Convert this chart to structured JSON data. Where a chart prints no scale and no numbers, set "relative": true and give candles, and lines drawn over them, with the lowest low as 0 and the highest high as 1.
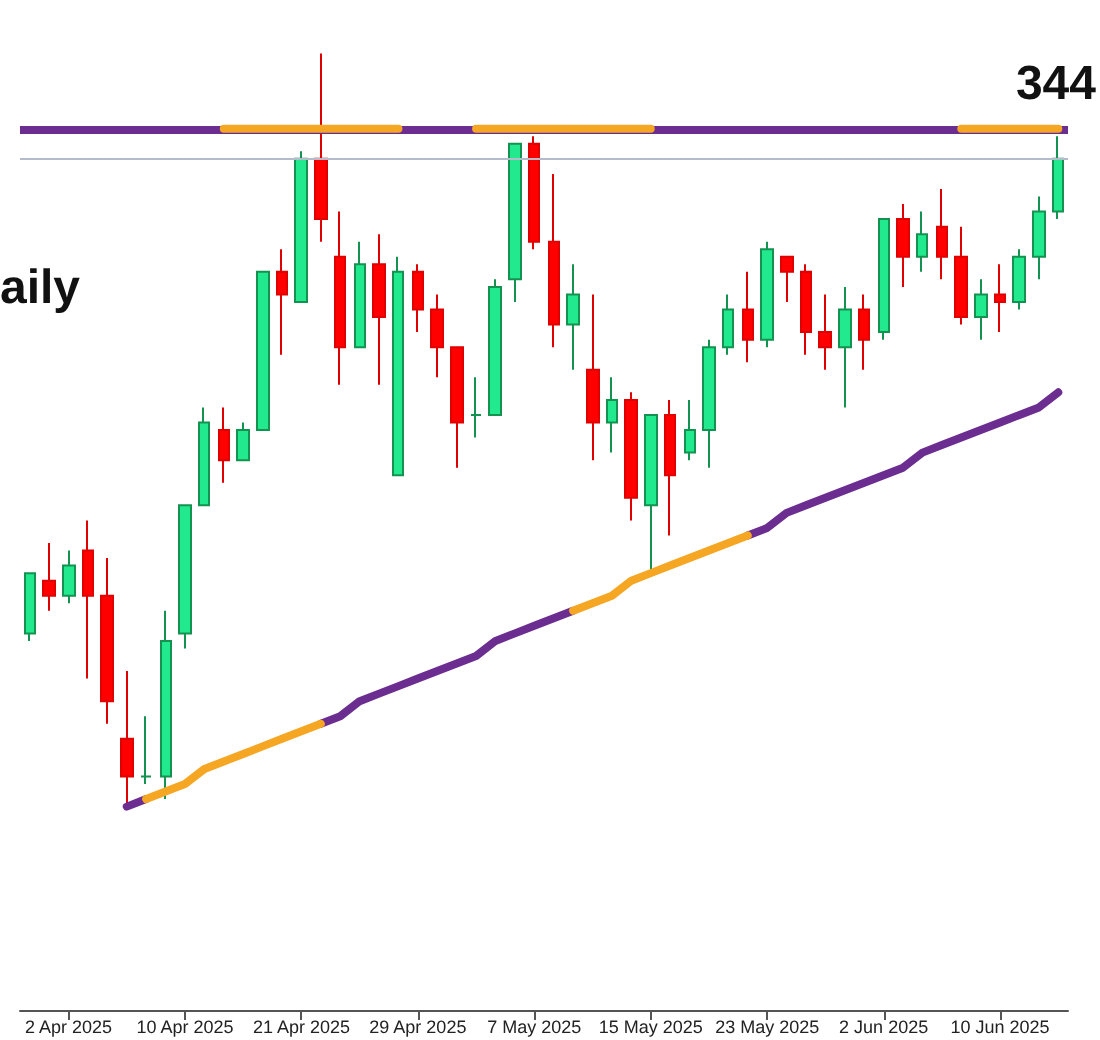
{
  "chart_data": {
    "type": "candlestick",
    "relative": true,
    "annotations": [
      "344",
      "aily"
    ],
    "categories": [
      null,
      null,
      "2 Apr 2025",
      null,
      null,
      null,
      null,
      null,
      "10 Apr 2025",
      null,
      null,
      null,
      null,
      null,
      "21 Apr 2025",
      null,
      null,
      null,
      null,
      null,
      "29 Apr 2025",
      null,
      null,
      null,
      null,
      null,
      "7 May 2025",
      null,
      null,
      null,
      null,
      null,
      "15 May 2025",
      null,
      null,
      null,
      null,
      null,
      "23 May 2025",
      null,
      null,
      null,
      null,
      null,
      "2 Jun 2025",
      null,
      null,
      null,
      null,
      null,
      "10 Jun 2025",
      null,
      null,
      null
    ],
    "ohlc": [
      [
        0.23,
        0.31,
        0.22,
        0.31
      ],
      [
        0.3,
        0.35,
        0.26,
        0.28
      ],
      [
        0.28,
        0.34,
        0.27,
        0.32
      ],
      [
        0.34,
        0.38,
        0.17,
        0.28
      ],
      [
        0.28,
        0.33,
        0.11,
        0.14
      ],
      [
        0.09,
        0.18,
        0,
        0.04
      ],
      [
        0.04,
        0.12,
        0.03,
        0.04
      ],
      [
        0.04,
        0.26,
        0.01,
        0.22
      ],
      [
        0.23,
        0.4,
        0.21,
        0.4
      ],
      [
        0.4,
        0.53,
        0.4,
        0.51
      ],
      [
        0.5,
        0.53,
        0.43,
        0.46
      ],
      [
        0.46,
        0.51,
        0.46,
        0.5
      ],
      [
        0.5,
        0.71,
        0.5,
        0.71
      ],
      [
        0.71,
        0.74,
        0.6,
        0.68
      ],
      [
        0.67,
        0.87,
        0.67,
        0.86
      ],
      [
        0.86,
        1,
        0.75,
        0.78
      ],
      [
        0.73,
        0.79,
        0.56,
        0.61
      ],
      [
        0.61,
        0.75,
        0.61,
        0.72
      ],
      [
        0.72,
        0.76,
        0.56,
        0.65
      ],
      [
        0.44,
        0.73,
        0.44,
        0.71
      ],
      [
        0.71,
        0.72,
        0.63,
        0.66
      ],
      [
        0.66,
        0.68,
        0.57,
        0.61
      ],
      [
        0.61,
        0.61,
        0.45,
        0.51
      ],
      [
        0.52,
        0.57,
        0.49,
        0.52
      ],
      [
        0.52,
        0.7,
        0.52,
        0.69
      ],
      [
        0.7,
        0.88,
        0.67,
        0.88
      ],
      [
        0.88,
        0.89,
        0.74,
        0.75
      ],
      [
        0.75,
        0.84,
        0.61,
        0.64
      ],
      [
        0.64,
        0.72,
        0.58,
        0.68
      ],
      [
        0.58,
        0.68,
        0.46,
        0.51
      ],
      [
        0.51,
        0.57,
        0.47,
        0.54
      ],
      [
        0.54,
        0.55,
        0.38,
        0.41
      ],
      [
        0.4,
        0.52,
        0.31,
        0.52
      ],
      [
        0.52,
        0.54,
        0.36,
        0.44
      ],
      [
        0.47,
        0.54,
        0.46,
        0.5
      ],
      [
        0.5,
        0.62,
        0.45,
        0.61
      ],
      [
        0.61,
        0.68,
        0.6,
        0.66
      ],
      [
        0.66,
        0.71,
        0.59,
        0.62
      ],
      [
        0.62,
        0.75,
        0.61,
        0.74
      ],
      [
        0.73,
        0.73,
        0.67,
        0.71
      ],
      [
        0.71,
        0.72,
        0.6,
        0.63
      ],
      [
        0.63,
        0.68,
        0.58,
        0.61
      ],
      [
        0.61,
        0.69,
        0.53,
        0.66
      ],
      [
        0.66,
        0.68,
        0.58,
        0.62
      ],
      [
        0.63,
        0.78,
        0.62,
        0.78
      ],
      [
        0.78,
        0.8,
        0.69,
        0.73
      ],
      [
        0.73,
        0.79,
        0.71,
        0.76
      ],
      [
        0.77,
        0.82,
        0.7,
        0.73
      ],
      [
        0.73,
        0.77,
        0.64,
        0.65
      ],
      [
        0.65,
        0.7,
        0.62,
        0.68
      ],
      [
        0.68,
        0.72,
        0.63,
        0.67
      ],
      [
        0.67,
        0.74,
        0.66,
        0.73
      ],
      [
        0.73,
        0.81,
        0.7,
        0.79
      ],
      [
        0.79,
        0.89,
        0.78,
        0.86
      ]
    ],
    "series": [
      {
        "type": "line",
        "color": "#6b2d8f",
        "values": [
          null,
          null,
          null,
          null,
          null,
          0,
          0.01,
          null,
          null,
          null,
          null,
          null,
          null,
          null,
          null,
          0.11,
          0.12,
          0.14,
          0.15,
          0.16,
          0.17,
          0.18,
          0.19,
          0.2,
          0.22,
          0.23,
          0.24,
          0.25,
          0.26,
          null,
          null,
          null,
          null,
          null,
          null,
          null,
          null,
          0.36,
          0.37,
          0.39,
          0.4,
          0.41,
          0.42,
          0.43,
          0.44,
          0.45,
          0.47,
          0.48,
          0.49,
          0.5,
          0.51,
          0.52,
          0.53,
          0.55
        ]
      },
      {
        "type": "line",
        "color": "#f5a623",
        "values": [
          null,
          null,
          null,
          null,
          null,
          null,
          0.01,
          0.02,
          0.03,
          0.05,
          0.06,
          0.07,
          0.08,
          0.09,
          0.1,
          0.11,
          null,
          null,
          null,
          null,
          null,
          null,
          null,
          null,
          null,
          null,
          null,
          null,
          0.26,
          0.27,
          0.28,
          0.3,
          0.31,
          0.32,
          0.33,
          0.34,
          0.35,
          0.36,
          null,
          null,
          null,
          null,
          null,
          null,
          null,
          null,
          null,
          null,
          null,
          null,
          null,
          null,
          null,
          null
        ]
      },
      {
        "type": "line",
        "color": "#f5a623",
        "values": [
          null,
          null,
          null,
          null,
          null,
          null,
          null,
          null,
          null,
          null,
          0.9,
          0.9,
          0.9,
          0.9,
          0.9,
          0.9,
          0.9,
          0.9,
          0.9,
          0.9,
          null,
          null,
          null,
          0.9,
          0.9,
          0.9,
          0.9,
          0.9,
          0.9,
          0.9,
          0.9,
          0.9,
          0.9,
          null,
          null,
          null,
          null,
          null,
          null,
          null,
          null,
          null,
          null,
          null,
          null,
          null,
          null,
          null,
          0.9,
          0.9,
          0.9,
          0.9,
          0.9,
          0.9
        ]
      }
    ],
    "ref_lines": [
      {
        "axis": "y",
        "value": 0.9,
        "color": "#6b2d8f"
      },
      {
        "axis": "y",
        "value": 0.86,
        "color": "#b4bccb"
      }
    ]
  }
}
